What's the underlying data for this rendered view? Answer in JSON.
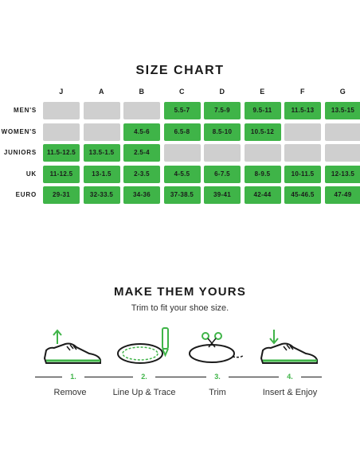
{
  "size_chart": {
    "title": "SIZE CHART",
    "columns": [
      "J",
      "A",
      "B",
      "C",
      "D",
      "E",
      "F",
      "G"
    ],
    "rows": [
      {
        "label": "MEN'S",
        "cells": [
          "",
          "",
          "",
          "5.5-7",
          "7.5-9",
          "9.5-11",
          "11.5-13",
          "13.5-15"
        ]
      },
      {
        "label": "WOMEN'S",
        "cells": [
          "",
          "",
          "4.5-6",
          "6.5-8",
          "8.5-10",
          "10.5-12",
          "",
          ""
        ]
      },
      {
        "label": "JUNIORS",
        "cells": [
          "11.5-12.5",
          "13.5-1.5",
          "2.5-4",
          "",
          "",
          "",
          "",
          ""
        ]
      },
      {
        "label": "UK",
        "cells": [
          "11-12.5",
          "13-1.5",
          "2-3.5",
          "4-5.5",
          "6-7.5",
          "8-9.5",
          "10-11.5",
          "12-13.5"
        ]
      },
      {
        "label": "EURO",
        "cells": [
          "29-31",
          "32-33.5",
          "34-36",
          "37-38.5",
          "39-41",
          "42-44",
          "45-46.5",
          "47-49"
        ]
      }
    ],
    "colors": {
      "available": "#3fb448",
      "unavailable": "#cfcfcf"
    }
  },
  "instructions": {
    "title": "MAKE THEM YOURS",
    "subtitle": "Trim to fit your shoe size.",
    "steps": [
      {
        "number": "1.",
        "label": "Remove",
        "icon": "shoe-remove-insole-icon"
      },
      {
        "number": "2.",
        "label": "Line Up & Trace",
        "icon": "insole-trace-pen-icon"
      },
      {
        "number": "3.",
        "label": "Trim",
        "icon": "insole-scissors-trim-icon"
      },
      {
        "number": "4.",
        "label": "Insert & Enjoy",
        "icon": "shoe-insert-insole-icon"
      }
    ],
    "accent": "#3fb448"
  }
}
